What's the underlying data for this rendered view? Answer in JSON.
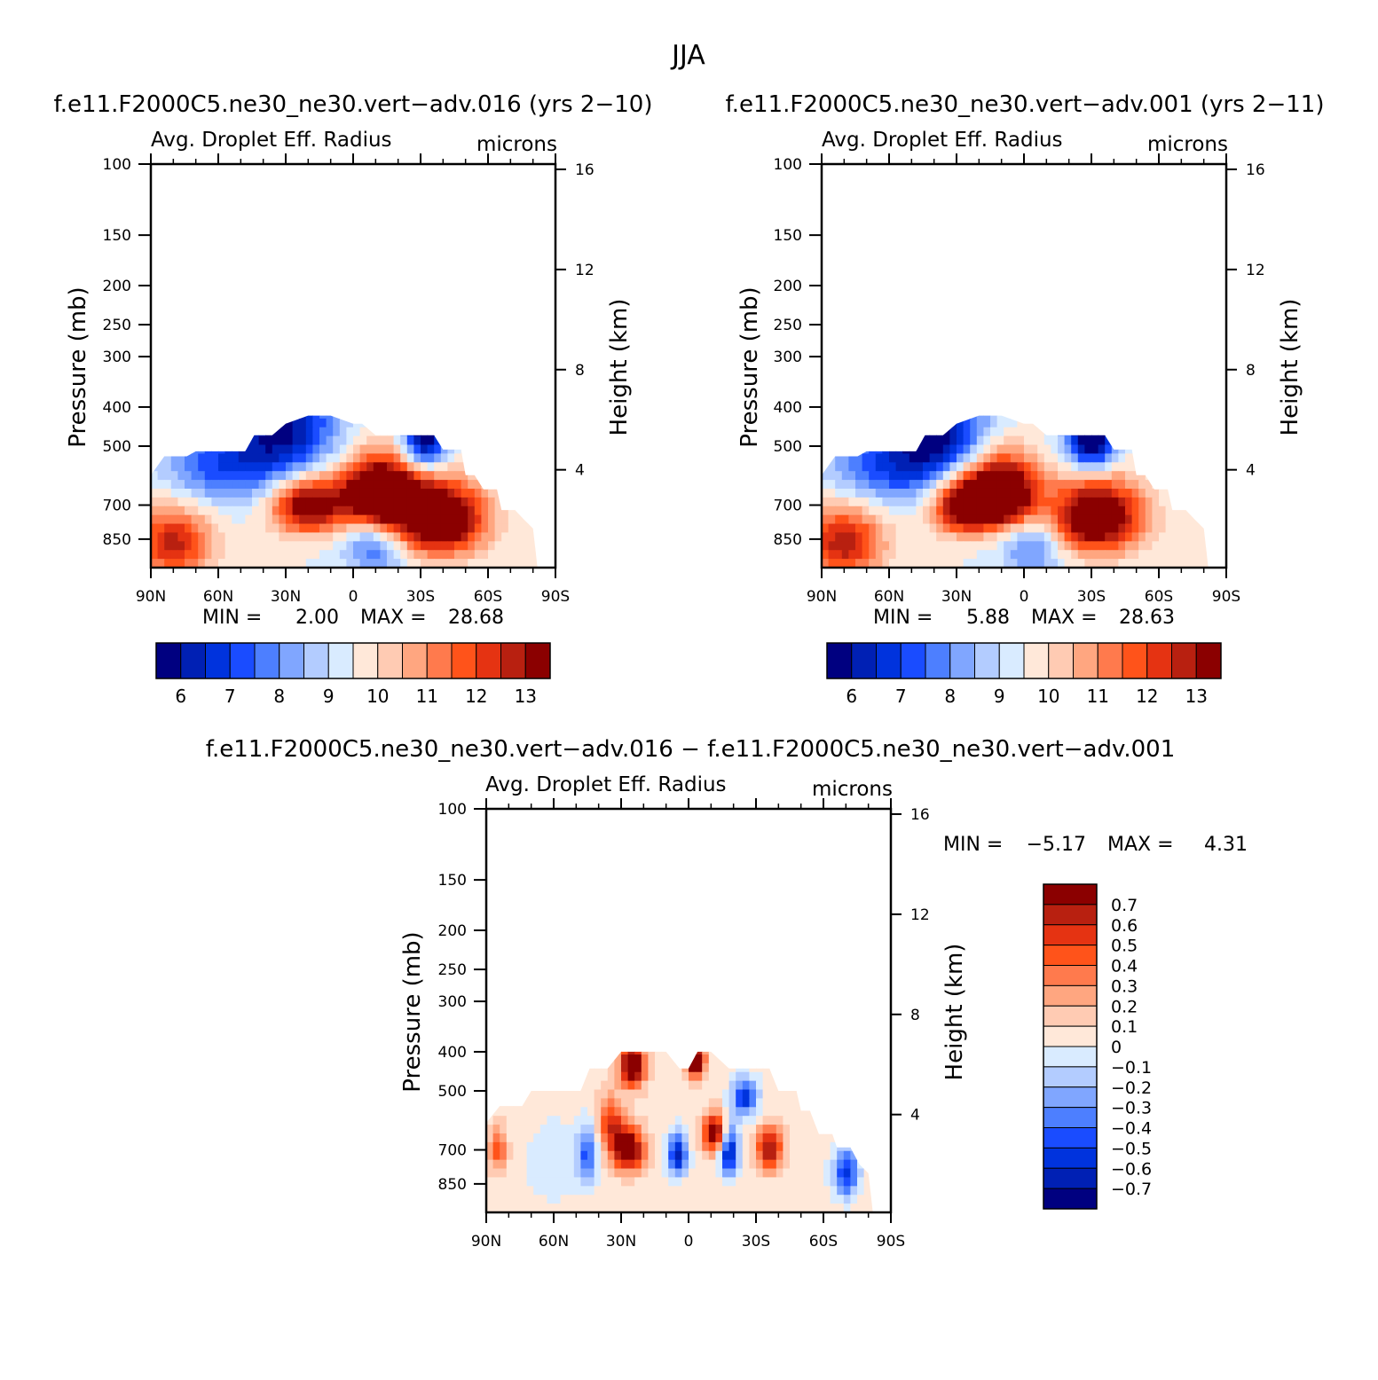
{
  "figure": {
    "title": "JJA"
  },
  "colors": {
    "main_scale": [
      "#000080",
      "#0020b4",
      "#0033dd",
      "#1a4cff",
      "#4d7fff",
      "#80a6ff",
      "#b3ccff",
      "#d9ebff",
      "#ffe8d9",
      "#ffcbb3",
      "#ffa680",
      "#ff7a4d",
      "#ff531a",
      "#e53312",
      "#b82010",
      "#8b0000"
    ],
    "diff_scale": [
      "#000080",
      "#0020b4",
      "#0033dd",
      "#1a4cff",
      "#4d7fff",
      "#80a6ff",
      "#b3ccff",
      "#d9ebff",
      "#ffe8d9",
      "#ffcbb3",
      "#ffa680",
      "#ff7a4d",
      "#ff531a",
      "#e53312",
      "#b82010",
      "#8b0000"
    ]
  },
  "chart_data": [
    {
      "type": "heatmap",
      "id": "panel1",
      "title": "f.e11.F2000C5.ne30_ne30.vert−adv.016 (yrs 2−10)",
      "left_string": "Avg. Droplet Eff. Radius",
      "right_string": "microns",
      "xlabel": "",
      "ylabel": "Pressure (mb)",
      "ylabel_right": "Height (km)",
      "x_ticks": [
        "90N",
        "60N",
        "30N",
        "0",
        "30S",
        "60S",
        "90S"
      ],
      "x_values": [
        90,
        60,
        30,
        0,
        -30,
        -60,
        -90
      ],
      "xlim": [
        90,
        -90
      ],
      "y_ticks": [
        "100",
        "150",
        "200",
        "250",
        "300",
        "400",
        "500",
        "700",
        "850"
      ],
      "y_values": [
        100,
        150,
        200,
        250,
        300,
        400,
        500,
        700,
        850
      ],
      "ylim": [
        1000,
        100
      ],
      "y_right_ticks": [
        "16",
        "12",
        "8",
        "4"
      ],
      "y_right_values": [
        16,
        12,
        8,
        4
      ],
      "min_label": "MIN =",
      "min_value": "2.00",
      "max_label": "MAX =",
      "max_value": "28.68",
      "colorbar_labels": [
        "6",
        "7",
        "8",
        "9",
        "10",
        "11",
        "12",
        "13"
      ],
      "levels": [
        5.5,
        6,
        6.5,
        7,
        7.5,
        8,
        8.5,
        9,
        9.5,
        10,
        10.5,
        11,
        11.5,
        12,
        12.5,
        13,
        13.5
      ],
      "blobs": [
        {
          "lat": -12,
          "p": 660,
          "sx": 12,
          "sy": 90,
          "a": 6.5
        },
        {
          "lat": 20,
          "p": 700,
          "sx": 11,
          "sy": 80,
          "a": 4.5
        },
        {
          "lat": -38,
          "p": 760,
          "sx": 14,
          "sy": 110,
          "a": 5.5
        },
        {
          "lat": 80,
          "p": 870,
          "sx": 12,
          "sy": 120,
          "a": 3.2
        },
        {
          "lat": 30,
          "p": 450,
          "sx": 16,
          "sy": 110,
          "a": -3.5
        },
        {
          "lat": -32,
          "p": 470,
          "sx": 7,
          "sy": 70,
          "a": -4.5
        },
        {
          "lat": 60,
          "p": 560,
          "sx": 18,
          "sy": 90,
          "a": -2.2
        },
        {
          "lat": -10,
          "p": 880,
          "sx": 10,
          "sy": 120,
          "a": -2
        }
      ],
      "base": 9.5,
      "upper_boundary": [
        [
          90,
          590
        ],
        [
          84,
          530
        ],
        [
          80,
          530
        ],
        [
          74,
          530
        ],
        [
          70,
          515
        ],
        [
          62,
          515
        ],
        [
          48,
          515
        ],
        [
          44,
          470
        ],
        [
          36,
          470
        ],
        [
          30,
          440
        ],
        [
          20,
          420
        ],
        [
          10,
          420
        ],
        [
          0,
          440
        ],
        [
          -4,
          440
        ],
        [
          -10,
          470
        ],
        [
          -18,
          470
        ],
        [
          -26,
          470
        ],
        [
          -36,
          470
        ],
        [
          -40,
          510
        ],
        [
          -48,
          510
        ],
        [
          -50,
          590
        ],
        [
          -54,
          590
        ],
        [
          -58,
          640
        ],
        [
          -64,
          640
        ],
        [
          -66,
          720
        ],
        [
          -72,
          720
        ],
        [
          -76,
          760
        ],
        [
          -80,
          800
        ],
        [
          -82,
          1000
        ],
        [
          90,
          1000
        ]
      ]
    },
    {
      "type": "heatmap",
      "id": "panel2",
      "title": "f.e11.F2000C5.ne30_ne30.vert−adv.001 (yrs 2−11)",
      "left_string": "Avg. Droplet Eff. Radius",
      "right_string": "microns",
      "xlabel": "",
      "ylabel": "Pressure (mb)",
      "ylabel_right": "Height (km)",
      "x_ticks": [
        "90N",
        "60N",
        "30N",
        "0",
        "30S",
        "60S",
        "90S"
      ],
      "x_values": [
        90,
        60,
        30,
        0,
        -30,
        -60,
        -90
      ],
      "xlim": [
        90,
        -90
      ],
      "y_ticks": [
        "100",
        "150",
        "200",
        "250",
        "300",
        "400",
        "500",
        "700",
        "850"
      ],
      "y_values": [
        100,
        150,
        200,
        250,
        300,
        400,
        500,
        700,
        850
      ],
      "ylim": [
        1000,
        100
      ],
      "y_right_ticks": [
        "16",
        "12",
        "8",
        "4"
      ],
      "y_right_values": [
        16,
        12,
        8,
        4
      ],
      "min_label": "MIN =",
      "min_value": "5.88",
      "max_label": "MAX =",
      "max_value": "28.63",
      "colorbar_labels": [
        "6",
        "7",
        "8",
        "9",
        "10",
        "11",
        "12",
        "13"
      ],
      "levels": [
        5.5,
        6,
        6.5,
        7,
        7.5,
        8,
        8.5,
        9,
        9.5,
        10,
        10.5,
        11,
        11.5,
        12,
        12.5,
        13,
        13.5
      ],
      "blobs": [
        {
          "lat": 10,
          "p": 660,
          "sx": 11,
          "sy": 90,
          "a": 6.5
        },
        {
          "lat": 28,
          "p": 700,
          "sx": 9,
          "sy": 80,
          "a": 4.2
        },
        {
          "lat": -32,
          "p": 750,
          "sx": 14,
          "sy": 110,
          "a": 5.2
        },
        {
          "lat": 80,
          "p": 870,
          "sx": 12,
          "sy": 120,
          "a": 3.4
        },
        {
          "lat": 38,
          "p": 450,
          "sx": 15,
          "sy": 110,
          "a": -3.5
        },
        {
          "lat": -30,
          "p": 470,
          "sx": 8,
          "sy": 70,
          "a": -5
        },
        {
          "lat": 62,
          "p": 560,
          "sx": 18,
          "sy": 90,
          "a": -2.2
        },
        {
          "lat": -4,
          "p": 880,
          "sx": 10,
          "sy": 120,
          "a": -1.8
        }
      ],
      "base": 9.5,
      "upper_boundary": [
        [
          90,
          590
        ],
        [
          84,
          530
        ],
        [
          80,
          530
        ],
        [
          74,
          530
        ],
        [
          70,
          515
        ],
        [
          62,
          515
        ],
        [
          48,
          515
        ],
        [
          44,
          470
        ],
        [
          36,
          470
        ],
        [
          30,
          440
        ],
        [
          20,
          420
        ],
        [
          10,
          420
        ],
        [
          0,
          440
        ],
        [
          -4,
          440
        ],
        [
          -10,
          470
        ],
        [
          -18,
          470
        ],
        [
          -26,
          470
        ],
        [
          -36,
          470
        ],
        [
          -40,
          510
        ],
        [
          -48,
          510
        ],
        [
          -50,
          590
        ],
        [
          -54,
          590
        ],
        [
          -58,
          640
        ],
        [
          -64,
          640
        ],
        [
          -66,
          720
        ],
        [
          -72,
          720
        ],
        [
          -76,
          760
        ],
        [
          -80,
          800
        ],
        [
          -82,
          1000
        ],
        [
          90,
          1000
        ]
      ]
    },
    {
      "type": "heatmap",
      "id": "panel3",
      "title": "f.e11.F2000C5.ne30_ne30.vert−adv.016 − f.e11.F2000C5.ne30_ne30.vert−adv.001",
      "left_string": "Avg. Droplet Eff. Radius",
      "right_string": "microns",
      "xlabel": "",
      "ylabel": "Pressure (mb)",
      "ylabel_right": "Height (km)",
      "x_ticks": [
        "90N",
        "60N",
        "30N",
        "0",
        "30S",
        "60S",
        "90S"
      ],
      "x_values": [
        90,
        60,
        30,
        0,
        -30,
        -60,
        -90
      ],
      "xlim": [
        90,
        -90
      ],
      "y_ticks": [
        "100",
        "150",
        "200",
        "250",
        "300",
        "400",
        "500",
        "700",
        "850"
      ],
      "y_values": [
        100,
        150,
        200,
        250,
        300,
        400,
        500,
        700,
        850
      ],
      "ylim": [
        1000,
        100
      ],
      "y_right_ticks": [
        "16",
        "12",
        "8",
        "4"
      ],
      "y_right_values": [
        16,
        12,
        8,
        4
      ],
      "min_label": "MIN =",
      "min_value": "−5.17",
      "max_label": "MAX =",
      "max_value": "4.31",
      "colorbar_labels": [
        "0.7",
        "0.6",
        "0.5",
        "0.4",
        "0.3",
        "0.2",
        "0.1",
        "0",
        "−0.1",
        "−0.2",
        "−0.3",
        "−0.4",
        "−0.5",
        "−0.6",
        "−0.7"
      ],
      "levels": [
        -0.75,
        -0.7,
        -0.6,
        -0.5,
        -0.4,
        -0.3,
        -0.2,
        -0.1,
        0,
        0.1,
        0.2,
        0.3,
        0.4,
        0.5,
        0.6,
        0.7,
        0.75
      ],
      "blobs": [
        {
          "lat": 27,
          "p": 700,
          "sx": 5,
          "sy": 60,
          "a": 0.9
        },
        {
          "lat": -12,
          "p": 640,
          "sx": 4,
          "sy": 50,
          "a": 0.8
        },
        {
          "lat": -36,
          "p": 700,
          "sx": 4,
          "sy": 60,
          "a": 0.7
        },
        {
          "lat": 35,
          "p": 600,
          "sx": 4,
          "sy": 60,
          "a": 0.5
        },
        {
          "lat": 85,
          "p": 700,
          "sx": 3,
          "sy": 60,
          "a": 0.4
        },
        {
          "lat": 5,
          "p": 720,
          "sx": 3,
          "sy": 60,
          "a": -0.7
        },
        {
          "lat": -18,
          "p": 700,
          "sx": 3,
          "sy": 70,
          "a": -0.8
        },
        {
          "lat": 45,
          "p": 720,
          "sx": 3,
          "sy": 80,
          "a": -0.5
        },
        {
          "lat": -25,
          "p": 520,
          "sx": 4,
          "sy": 40,
          "a": -0.6
        },
        {
          "lat": 25,
          "p": 430,
          "sx": 4,
          "sy": 40,
          "a": 0.9
        },
        {
          "lat": -3,
          "p": 420,
          "sx": 3,
          "sy": 30,
          "a": 0.9
        },
        {
          "lat": 60,
          "p": 760,
          "sx": 8,
          "sy": 120,
          "a": -0.15
        },
        {
          "lat": -70,
          "p": 800,
          "sx": 4,
          "sy": 80,
          "a": -0.6
        }
      ],
      "base": 0.05,
      "upper_boundary": [
        [
          90,
          600
        ],
        [
          84,
          545
        ],
        [
          80,
          545
        ],
        [
          74,
          545
        ],
        [
          70,
          500
        ],
        [
          62,
          500
        ],
        [
          48,
          500
        ],
        [
          44,
          440
        ],
        [
          36,
          440
        ],
        [
          30,
          400
        ],
        [
          20,
          400
        ],
        [
          10,
          400
        ],
        [
          4,
          440
        ],
        [
          0,
          440
        ],
        [
          -4,
          400
        ],
        [
          -10,
          400
        ],
        [
          -18,
          440
        ],
        [
          -26,
          440
        ],
        [
          -36,
          440
        ],
        [
          -40,
          500
        ],
        [
          -48,
          500
        ],
        [
          -50,
          560
        ],
        [
          -54,
          560
        ],
        [
          -58,
          640
        ],
        [
          -64,
          640
        ],
        [
          -66,
          690
        ],
        [
          -72,
          690
        ],
        [
          -76,
          760
        ],
        [
          -80,
          800
        ],
        [
          -82,
          1000
        ],
        [
          90,
          1000
        ]
      ]
    }
  ]
}
